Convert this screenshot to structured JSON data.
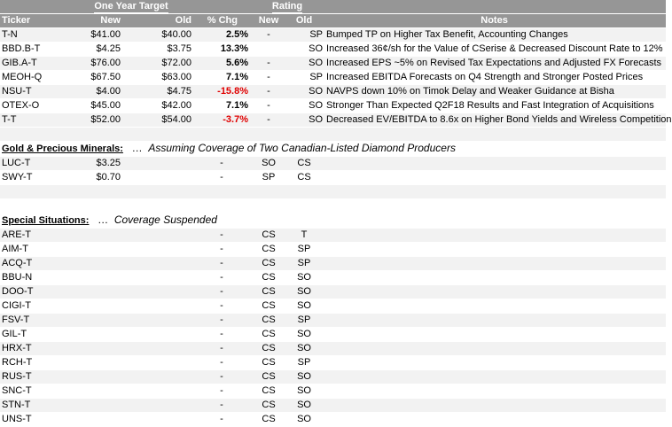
{
  "header": {
    "group_target": "One Year Target",
    "group_rating": "Rating",
    "col_ticker": "Ticker",
    "col_new": "New",
    "col_old": "Old",
    "col_chg": "% Chg",
    "col_rating_new": "New",
    "col_rating_old": "Old",
    "col_notes": "Notes"
  },
  "rows": [
    {
      "ticker": "T-N",
      "new": "$41.00",
      "old": "$40.00",
      "chg": "2.5%",
      "rnew": "-",
      "rold": "SP",
      "notes": "Bumped TP on Higher Tax Benefit, Accounting Changes"
    },
    {
      "ticker": "BBD.B-T",
      "new": "$4.25",
      "old": "$3.75",
      "chg": "13.3%",
      "rnew": "",
      "rold": "SO",
      "notes": "Increased 36¢/sh for the Value of CSerise & Decreased Discount Rate to 12%"
    },
    {
      "ticker": "GIB.A-T",
      "new": "$76.00",
      "old": "$72.00",
      "chg": "5.6%",
      "rnew": "-",
      "rold": "SO",
      "notes": "Increased EPS ~5% on Revised Tax Expectations and Adjusted FX Forecasts"
    },
    {
      "ticker": "MEOH-Q",
      "new": "$67.50",
      "old": "$63.00",
      "chg": "7.1%",
      "rnew": "-",
      "rold": "SP",
      "notes": "Increased EBITDA Forecasts on Q4 Strength and Stronger Posted Prices"
    },
    {
      "ticker": "NSU-T",
      "new": "$4.00",
      "old": "$4.75",
      "chg": "-15.8%",
      "rnew": "-",
      "rold": "SO",
      "notes": "NAVPS down 10% on Timok Delay and Weaker Guidance at Bisha"
    },
    {
      "ticker": "OTEX-O",
      "new": "$45.00",
      "old": "$42.00",
      "chg": "7.1%",
      "rnew": "-",
      "rold": "SO",
      "notes": "Stronger Than Expected Q2F18 Results and Fast Integration of Acquisitions"
    },
    {
      "ticker": "T-T",
      "new": "$52.00",
      "old": "$54.00",
      "chg": "-3.7%",
      "rnew": "-",
      "rold": "SO",
      "notes": "Decreased EV/EBITDA to 8.6x on Higher Bond Yields and Wireless Competition"
    }
  ],
  "gold": {
    "title": "Gold & Precious Minerals:",
    "subtitle": "Assuming Coverage of Two Canadian-Listed Diamond Producers",
    "rows": [
      {
        "ticker": "LUC-T",
        "new": "$3.25",
        "chg": "-",
        "rnew": "SO",
        "rold": "CS"
      },
      {
        "ticker": "SWY-T",
        "new": "$0.70",
        "chg": "-",
        "rnew": "SP",
        "rold": "CS"
      }
    ]
  },
  "special": {
    "title": "Special Situations:",
    "subtitle": "Coverage Suspended",
    "rows": [
      {
        "ticker": "ARE-T",
        "chg": "-",
        "rnew": "CS",
        "rold": "T"
      },
      {
        "ticker": "AIM-T",
        "chg": "-",
        "rnew": "CS",
        "rold": "SP"
      },
      {
        "ticker": "ACQ-T",
        "chg": "-",
        "rnew": "CS",
        "rold": "SP"
      },
      {
        "ticker": "BBU-N",
        "chg": "-",
        "rnew": "CS",
        "rold": "SO"
      },
      {
        "ticker": "DOO-T",
        "chg": "-",
        "rnew": "CS",
        "rold": "SO"
      },
      {
        "ticker": "CIGI-T",
        "chg": "-",
        "rnew": "CS",
        "rold": "SO"
      },
      {
        "ticker": "FSV-T",
        "chg": "-",
        "rnew": "CS",
        "rold": "SP"
      },
      {
        "ticker": "GIL-T",
        "chg": "-",
        "rnew": "CS",
        "rold": "SO"
      },
      {
        "ticker": "HRX-T",
        "chg": "-",
        "rnew": "CS",
        "rold": "SO"
      },
      {
        "ticker": "RCH-T",
        "chg": "-",
        "rnew": "CS",
        "rold": "SP"
      },
      {
        "ticker": "RUS-T",
        "chg": "-",
        "rnew": "CS",
        "rold": "SO"
      },
      {
        "ticker": "SNC-T",
        "chg": "-",
        "rnew": "CS",
        "rold": "SO"
      },
      {
        "ticker": "STN-T",
        "chg": "-",
        "rnew": "CS",
        "rold": "SO"
      },
      {
        "ticker": "UNS-T",
        "chg": "-",
        "rnew": "CS",
        "rold": "SO"
      }
    ]
  },
  "ellipsis": "…",
  "colors": {
    "header_bg": "#969696",
    "negative": "#e00000",
    "row_alt": "#f2f2f2"
  }
}
